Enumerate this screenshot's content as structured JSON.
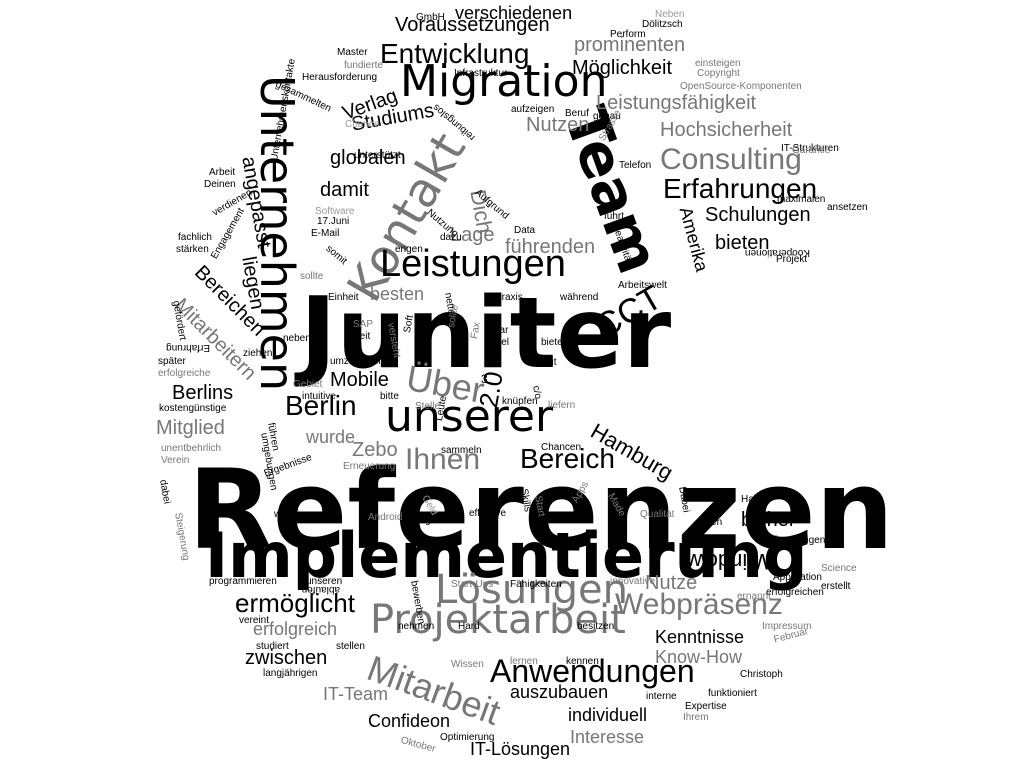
{
  "words": [
    {
      "t": "Referenzen",
      "c": "c0",
      "w": 700
    },
    {
      "t": "Juniter",
      "c": "c0",
      "w": 700
    },
    {
      "t": "Implementierung",
      "c": "c0",
      "w": 700
    },
    {
      "t": "Team",
      "c": "c0",
      "w": 700
    },
    {
      "t": "Kontakt",
      "c": "c2",
      "w": 400
    },
    {
      "t": "Unternehmen",
      "c": "c0",
      "w": 400
    },
    {
      "t": "Migration",
      "c": "c0",
      "w": 400
    },
    {
      "t": "unserer",
      "c": "c0",
      "w": 400
    },
    {
      "t": "Leistungen",
      "c": "c0",
      "w": 400
    },
    {
      "t": "Lösungen",
      "c": "c2",
      "w": 400
    },
    {
      "t": "Projektarbeit",
      "c": "c2",
      "w": 400
    },
    {
      "t": "Mitarbeit",
      "c": "c2",
      "w": 400
    },
    {
      "t": "Anwendungen",
      "c": "c0",
      "w": 400
    },
    {
      "t": "Webpräsenz",
      "c": "c2",
      "w": 400
    },
    {
      "t": "Consulting",
      "c": "c2",
      "w": 400
    },
    {
      "t": "Erfahrungen",
      "c": "c0",
      "w": 400
    },
    {
      "t": "Entwicklung",
      "c": "c0",
      "w": 400
    },
    {
      "t": "Berlin",
      "c": "c0",
      "w": 400
    },
    {
      "t": "Über",
      "c": "c2",
      "w": 400
    },
    {
      "t": "Bereich",
      "c": "c0",
      "w": 400
    },
    {
      "t": "ermöglicht",
      "c": "c0",
      "w": 400
    },
    {
      "t": "CCT",
      "c": "c0",
      "w": 400
    },
    {
      "t": "Hamburg",
      "c": "c0",
      "w": 400
    },
    {
      "t": "Ihnen",
      "c": "c2",
      "w": 400
    },
    {
      "t": "Windows",
      "c": "c0",
      "w": 400
    },
    {
      "t": "Hochsicherheit",
      "c": "c2",
      "w": 400
    },
    {
      "t": "Schulungen",
      "c": "c0",
      "w": 400
    },
    {
      "t": "Voraussetzungen",
      "c": "c0",
      "w": 400
    },
    {
      "t": "Möglichkeit",
      "c": "c0",
      "w": 400
    },
    {
      "t": "prominenten",
      "c": "c2",
      "w": 400
    },
    {
      "t": "Leistungsfähigkeit",
      "c": "c2",
      "w": 400
    },
    {
      "t": "verschiedenen",
      "c": "c0",
      "w": 400
    },
    {
      "t": "Nutzen",
      "c": "c2",
      "w": 400
    },
    {
      "t": "Studiums",
      "c": "c0",
      "w": 400
    },
    {
      "t": "globalen",
      "c": "c0",
      "w": 400
    },
    {
      "t": "Verlag",
      "c": "c0",
      "w": 400
    },
    {
      "t": "damit",
      "c": "c0",
      "w": 400
    },
    {
      "t": "Dich",
      "c": "c2",
      "w": 400
    },
    {
      "t": "Amerika",
      "c": "c0",
      "w": 400
    },
    {
      "t": "bieten",
      "c": "c0",
      "w": 400
    },
    {
      "t": "führenden",
      "c": "c2",
      "w": 400
    },
    {
      "t": "Lage",
      "c": "c2",
      "w": 400
    },
    {
      "t": "besten",
      "c": "c2",
      "w": 400
    },
    {
      "t": "angepasst",
      "c": "c0",
      "w": 400
    },
    {
      "t": "Bereichen",
      "c": "c0",
      "w": 400
    },
    {
      "t": "liegen",
      "c": "c0",
      "w": 400
    },
    {
      "t": "Mitarbeitern",
      "c": "c2",
      "w": 400
    },
    {
      "t": "Berlins",
      "c": "c0",
      "w": 400
    },
    {
      "t": "Mobile",
      "c": "c0",
      "w": 400
    },
    {
      "t": "Mitglied",
      "c": "c2",
      "w": 400
    },
    {
      "t": "wurde",
      "c": "c2",
      "w": 400
    },
    {
      "t": "Zebo",
      "c": "c2",
      "w": 400
    },
    {
      "t": "2.0",
      "c": "c0",
      "w": 400
    },
    {
      "t": "bisher",
      "c": "c0",
      "w": 400
    },
    {
      "t": "Nutze",
      "c": "c2",
      "w": 400
    },
    {
      "t": "Kenntnisse",
      "c": "c0",
      "w": 400
    },
    {
      "t": "Know-How",
      "c": "c2",
      "w": 400
    },
    {
      "t": "erfolgreich",
      "c": "c2",
      "w": 400
    },
    {
      "t": "zwischen",
      "c": "c0",
      "w": 400
    },
    {
      "t": "auszubauen",
      "c": "c0",
      "w": 400
    },
    {
      "t": "IT-Team",
      "c": "c2",
      "w": 400
    },
    {
      "t": "Confideon",
      "c": "c0",
      "w": 400
    },
    {
      "t": "individuell",
      "c": "c0",
      "w": 400
    },
    {
      "t": "Interesse",
      "c": "c2",
      "w": 400
    },
    {
      "t": "IT-Lösungen",
      "c": "c0",
      "w": 400
    },
    {
      "t": "GmbH",
      "c": "c0",
      "w": 400
    },
    {
      "t": "Neben",
      "c": "c3",
      "w": 400
    },
    {
      "t": "Dölitzsch",
      "c": "c0",
      "w": 400
    },
    {
      "t": "Perform",
      "c": "c0",
      "w": 400
    },
    {
      "t": "Master",
      "c": "c0",
      "w": 400
    },
    {
      "t": "fundierte",
      "c": "c2",
      "w": 400
    },
    {
      "t": "einsteigen",
      "c": "c2",
      "w": 400
    },
    {
      "t": "Herausforderung",
      "c": "c0",
      "w": 400
    },
    {
      "t": "Infrastruktur",
      "c": "c0",
      "w": 400
    },
    {
      "t": "Copyright",
      "c": "c2",
      "w": 400
    },
    {
      "t": "OpenSource-Komponenten",
      "c": "c2",
      "w": 400
    },
    {
      "t": "aufzeigen",
      "c": "c0",
      "w": 400
    },
    {
      "t": "Beruf",
      "c": "c0",
      "w": 400
    },
    {
      "t": "genau",
      "c": "c0",
      "w": 400
    },
    {
      "t": "Chance",
      "c": "c3",
      "w": 400
    },
    {
      "t": "Strasse",
      "c": "c2",
      "w": 400
    },
    {
      "t": "gesammelten",
      "c": "c0",
      "w": 400
    },
    {
      "t": "Arbeit",
      "c": "c0",
      "w": 400
    },
    {
      "t": "Deinen",
      "c": "c0",
      "w": 400
    },
    {
      "t": "Telefon",
      "c": "c0",
      "w": 400
    },
    {
      "t": "IT-Strukturen",
      "c": "c0",
      "w": 400
    },
    {
      "t": "Garantie",
      "c": "c2",
      "w": 400
    },
    {
      "t": "maximalen",
      "c": "c0",
      "w": 400
    },
    {
      "t": "ansetzen",
      "c": "c0",
      "w": 400
    },
    {
      "t": "verdienen",
      "c": "c0",
      "w": 400
    },
    {
      "t": "fachlich",
      "c": "c0",
      "w": 400
    },
    {
      "t": "stärken",
      "c": "c0",
      "w": 400
    },
    {
      "t": "unterstützt",
      "c": "c0",
      "w": 400
    },
    {
      "t": "Software",
      "c": "c3",
      "w": 400
    },
    {
      "t": "17.Juni",
      "c": "c0",
      "w": 400
    },
    {
      "t": "E-Mail",
      "c": "c0",
      "w": 400
    },
    {
      "t": "Data",
      "c": "c0",
      "w": 400
    },
    {
      "t": "dazu",
      "c": "c0",
      "w": 400
    },
    {
      "t": "engen",
      "c": "c0",
      "w": 400
    },
    {
      "t": "führt",
      "c": "c0",
      "w": 400
    },
    {
      "t": "Kreativität",
      "c": "c0",
      "w": 400
    },
    {
      "t": "Kooperationen",
      "c": "c0",
      "w": 400
    },
    {
      "t": "Projekt",
      "c": "c0",
      "w": 400
    },
    {
      "t": "sollte",
      "c": "c2",
      "w": 400
    },
    {
      "t": "Einheit",
      "c": "c0",
      "w": 400
    },
    {
      "t": "Praxis",
      "c": "c0",
      "w": 400
    },
    {
      "t": "während",
      "c": "c0",
      "w": 400
    },
    {
      "t": "Arbeitswelt",
      "c": "c0",
      "w": 400
    },
    {
      "t": "SAP",
      "c": "c2",
      "w": 400
    },
    {
      "t": "Seit",
      "c": "c0",
      "w": 400
    },
    {
      "t": "neben",
      "c": "c0",
      "w": 400
    },
    {
      "t": "ziehen",
      "c": "c0",
      "w": 400
    },
    {
      "t": "später",
      "c": "c0",
      "w": 400
    },
    {
      "t": "erfolgreiche",
      "c": "c2",
      "w": 400
    },
    {
      "t": "umzusetzen",
      "c": "c0",
      "w": 400
    },
    {
      "t": "bietet",
      "c": "c0",
      "w": 400
    },
    {
      "t": "seit",
      "c": "c0",
      "w": 400
    },
    {
      "t": "Gebiet",
      "c": "c2",
      "w": 400
    },
    {
      "t": "intuitive",
      "c": "c0",
      "w": 400
    },
    {
      "t": "bitte",
      "c": "c0",
      "w": 400
    },
    {
      "t": "kostengünstige",
      "c": "c0",
      "w": 400
    },
    {
      "t": "Stelle",
      "c": "c2",
      "w": 400
    },
    {
      "t": "knüpfen",
      "c": "c0",
      "w": 400
    },
    {
      "t": "liefern",
      "c": "c2",
      "w": 400
    },
    {
      "t": "unentbehrlich",
      "c": "c2",
      "w": 400
    },
    {
      "t": "Verein",
      "c": "c2",
      "w": 400
    },
    {
      "t": "sammeln",
      "c": "c0",
      "w": 400
    },
    {
      "t": "Chancen",
      "c": "c0",
      "w": 400
    },
    {
      "t": "Erneuerung",
      "c": "c2",
      "w": 400
    },
    {
      "t": "Haben",
      "c": "c0",
      "w": 400
    },
    {
      "t": "wichtige",
      "c": "c0",
      "w": 400
    },
    {
      "t": "Android",
      "c": "c2",
      "w": 400
    },
    {
      "t": "gutes",
      "c": "c0",
      "w": 400
    },
    {
      "t": "effektive",
      "c": "c0",
      "w": 400
    },
    {
      "t": "Qualität",
      "c": "c2",
      "w": 400
    },
    {
      "t": "ihren",
      "c": "c0",
      "w": 400
    },
    {
      "t": "firmeneigenen",
      "c": "c0",
      "w": 400
    },
    {
      "t": "Science",
      "c": "c2",
      "w": 400
    },
    {
      "t": "Applikation",
      "c": "c0",
      "w": 400
    },
    {
      "t": "erstellt",
      "c": "c0",
      "w": 400
    },
    {
      "t": "erfolgreichen",
      "c": "c0",
      "w": 400
    },
    {
      "t": "programmieren",
      "c": "c0",
      "w": 400
    },
    {
      "t": "unseren",
      "c": "c0",
      "w": 400
    },
    {
      "t": "Start-Ups",
      "c": "c2",
      "w": 400
    },
    {
      "t": "Fähigkeiten",
      "c": "c0",
      "w": 400
    },
    {
      "t": "innovative",
      "c": "c2",
      "w": 400
    },
    {
      "t": "ernannt",
      "c": "c2",
      "w": 400
    },
    {
      "t": "nehmen",
      "c": "c0",
      "w": 400
    },
    {
      "t": "Hard",
      "c": "c0",
      "w": 400
    },
    {
      "t": "besitzen",
      "c": "c0",
      "w": 400
    },
    {
      "t": "Impressum",
      "c": "c2",
      "w": 400
    },
    {
      "t": "Februar",
      "c": "c2",
      "w": 400
    },
    {
      "t": "studiert",
      "c": "c0",
      "w": 400
    },
    {
      "t": "stellen",
      "c": "c0",
      "w": 400
    },
    {
      "t": "langjährigen",
      "c": "c0",
      "w": 400
    },
    {
      "t": "Wissen",
      "c": "c2",
      "w": 400
    },
    {
      "t": "lernen",
      "c": "c2",
      "w": 400
    },
    {
      "t": "kennen",
      "c": "c0",
      "w": 400
    },
    {
      "t": "Christoph",
      "c": "c0",
      "w": 400
    },
    {
      "t": "funktioniert",
      "c": "c0",
      "w": 400
    },
    {
      "t": "interne",
      "c": "c0",
      "w": 400
    },
    {
      "t": "Expertise",
      "c": "c0",
      "w": 400
    },
    {
      "t": "Ihrem",
      "c": "c2",
      "w": 400
    },
    {
      "t": "Optimierung",
      "c": "c0",
      "w": 400
    },
    {
      "t": "Oktober",
      "c": "c2",
      "w": 400
    },
    {
      "t": "Steigerung",
      "c": "c2",
      "w": 400
    },
    {
      "t": "Apps",
      "c": "c2",
      "w": 400
    },
    {
      "t": "Made",
      "c": "c2",
      "w": 400
    },
    {
      "t": "Dabei",
      "c": "c0",
      "w": 400
    },
    {
      "t": "Skills",
      "c": "c0",
      "w": 400
    },
    {
      "t": "Start",
      "c": "c2",
      "w": 400
    },
    {
      "t": "Geld",
      "c": "c3",
      "w": 400
    },
    {
      "t": "Leute",
      "c": "c0",
      "w": 400
    },
    {
      "t": "Soft",
      "c": "c0",
      "w": 400
    },
    {
      "t": "sollte",
      "c": "c2",
      "w": 400
    },
    {
      "t": "versteht",
      "c": "c2",
      "w": 400
    },
    {
      "t": "Fax",
      "c": "c2",
      "w": 400
    },
    {
      "t": "viel",
      "c": "c0",
      "w": 400
    },
    {
      "t": "führen",
      "c": "c0",
      "w": 400
    },
    {
      "t": "Ergebnisse",
      "c": "c0",
      "w": 400
    },
    {
      "t": "dabei",
      "c": "c0",
      "w": 400
    },
    {
      "t": "Nutzung",
      "c": "c0",
      "w": 400
    },
    {
      "t": "Aufgrund",
      "c": "c0",
      "w": 400
    },
    {
      "t": "reibungslos",
      "c": "c0",
      "w": 400
    },
    {
      "t": "Unternehmenskontakte",
      "c": "c0",
      "w": 400
    },
    {
      "t": "Engagement",
      "c": "c0",
      "w": 400
    },
    {
      "t": "gefördert",
      "c": "c0",
      "w": 400
    },
    {
      "t": "Erfahrung",
      "c": "c0",
      "w": 400
    },
    {
      "t": "somit",
      "c": "c0",
      "w": 400
    },
    {
      "t": "c/o",
      "c": "c0",
      "w": 400
    },
    {
      "t": "3",
      "c": "c0",
      "w": 400
    },
    {
      "t": "dar",
      "c": "c0",
      "w": 400
    },
    {
      "t": "nette",
      "c": "c0",
      "w": 400
    },
    {
      "t": "umgebungen",
      "c": "c0",
      "w": 400
    },
    {
      "t": "ablaufen",
      "c": "c0",
      "w": 400
    },
    {
      "t": "vereint",
      "c": "c0",
      "w": 400
    },
    {
      "t": "bewerben",
      "c": "c0",
      "w": 400
    }
  ]
}
